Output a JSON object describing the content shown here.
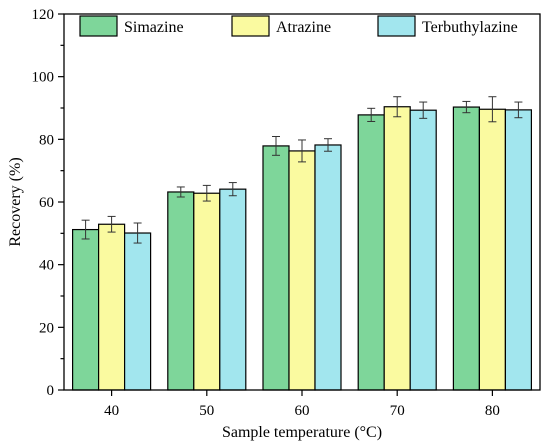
{
  "chart_data": {
    "type": "bar",
    "title": "",
    "xlabel": "Sample temperature (°C)",
    "ylabel": "Recovery (%)",
    "ylim": [
      0,
      120
    ],
    "yticks": [
      0,
      20,
      40,
      60,
      80,
      100,
      120
    ],
    "categories": [
      "40",
      "50",
      "60",
      "70",
      "80"
    ],
    "legend_position": "top",
    "grid": false,
    "series": [
      {
        "name": "Simazine",
        "color": "#7ed69a",
        "values": [
          51.2,
          63.2,
          77.9,
          87.8,
          90.3
        ],
        "errors": [
          3.0,
          1.6,
          3.0,
          2.1,
          1.8
        ]
      },
      {
        "name": "Atrazine",
        "color": "#fafaa0",
        "values": [
          52.9,
          62.8,
          76.3,
          90.4,
          89.6
        ],
        "errors": [
          2.5,
          2.5,
          3.5,
          3.2,
          4.0
        ]
      },
      {
        "name": "Terbuthylazine",
        "color": "#a2e6ee",
        "values": [
          50.1,
          64.1,
          78.2,
          89.3,
          89.4
        ],
        "errors": [
          3.2,
          2.1,
          2.0,
          2.6,
          2.5
        ]
      }
    ]
  }
}
